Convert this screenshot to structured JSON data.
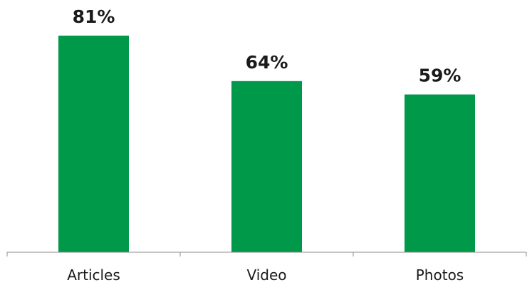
{
  "chart_data": {
    "type": "bar",
    "categories": [
      "Articles",
      "Video",
      "Photos"
    ],
    "values": [
      81,
      64,
      59
    ],
    "value_labels": [
      "81%",
      "64%",
      "59%"
    ],
    "title": "",
    "xlabel": "",
    "ylabel": "",
    "ylim": [
      0,
      81
    ],
    "grid": false,
    "legend": "none",
    "bar_color": "#00994a"
  }
}
